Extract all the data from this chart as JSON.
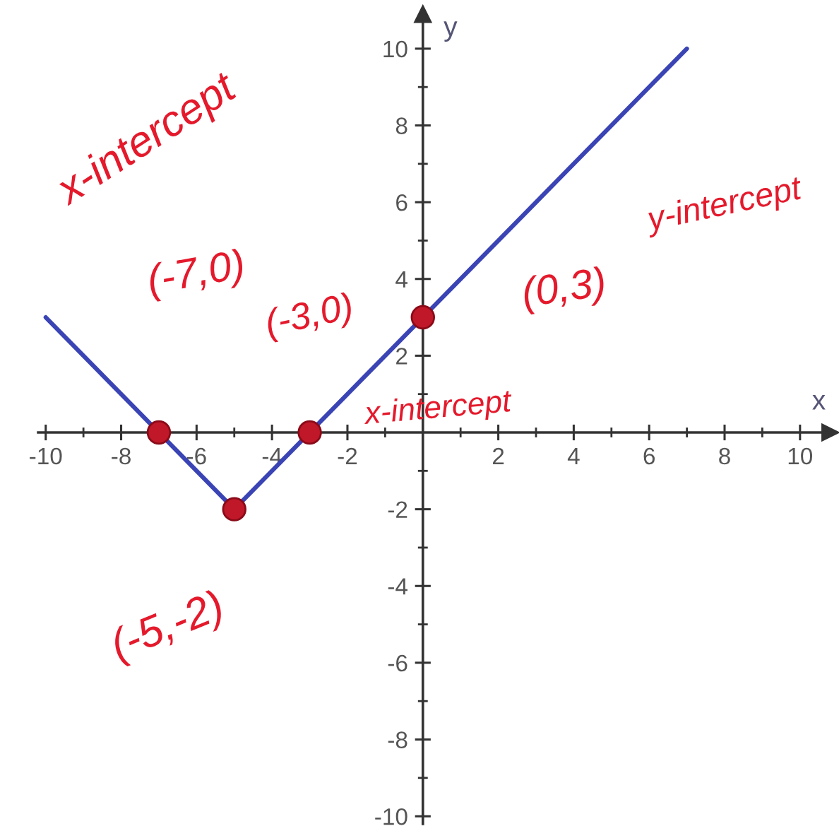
{
  "chart_data": {
    "type": "line",
    "xlabel": "x",
    "ylabel": "y",
    "series": [
      {
        "color": "#3a44b4",
        "x": [
          -10,
          -5,
          7
        ],
        "values": [
          3,
          -2,
          10
        ],
        "marker": "none",
        "line_style": "solid"
      },
      {
        "type": "scatter",
        "color": "#c01828",
        "x": [
          -7,
          -5,
          -3,
          0
        ],
        "values": [
          0,
          -2,
          0,
          3
        ],
        "marker": "circle"
      }
    ],
    "xlim": [
      -10.2,
      10.8
    ],
    "ylim": [
      -10.2,
      10.9
    ],
    "xticks": [
      -10,
      {
        "value": -9,
        "label": null
      },
      -8,
      {
        "value": -7,
        "label": null
      },
      -6,
      {
        "value": -5,
        "label": null
      },
      -4,
      {
        "value": -3,
        "label": null
      },
      -2,
      {
        "value": -1,
        "label": null
      },
      {
        "value": 1,
        "label": null
      },
      2,
      {
        "value": 3,
        "label": null
      },
      4,
      {
        "value": 5,
        "label": null
      },
      6,
      {
        "value": 7,
        "label": null
      },
      8,
      {
        "value": 9,
        "label": null
      },
      10
    ],
    "yticks": [
      -10,
      {
        "value": -9,
        "label": null
      },
      -8,
      {
        "value": -7,
        "label": null
      },
      -6,
      {
        "value": -5,
        "label": null
      },
      -4,
      {
        "value": -3,
        "label": null
      },
      -2,
      {
        "value": -1,
        "label": null
      },
      {
        "value": 1,
        "label": null
      },
      2,
      {
        "value": 3,
        "label": null
      },
      4,
      {
        "value": 5,
        "label": null
      },
      6,
      {
        "value": 7,
        "label": null
      },
      8,
      {
        "value": 9,
        "label": null
      },
      10
    ],
    "annotations": [
      "x-intercept",
      "(-7,0)",
      "(-3,0)",
      "x-intercept",
      "(0,3)",
      "y-intercept",
      "(-5,-2)"
    ]
  }
}
